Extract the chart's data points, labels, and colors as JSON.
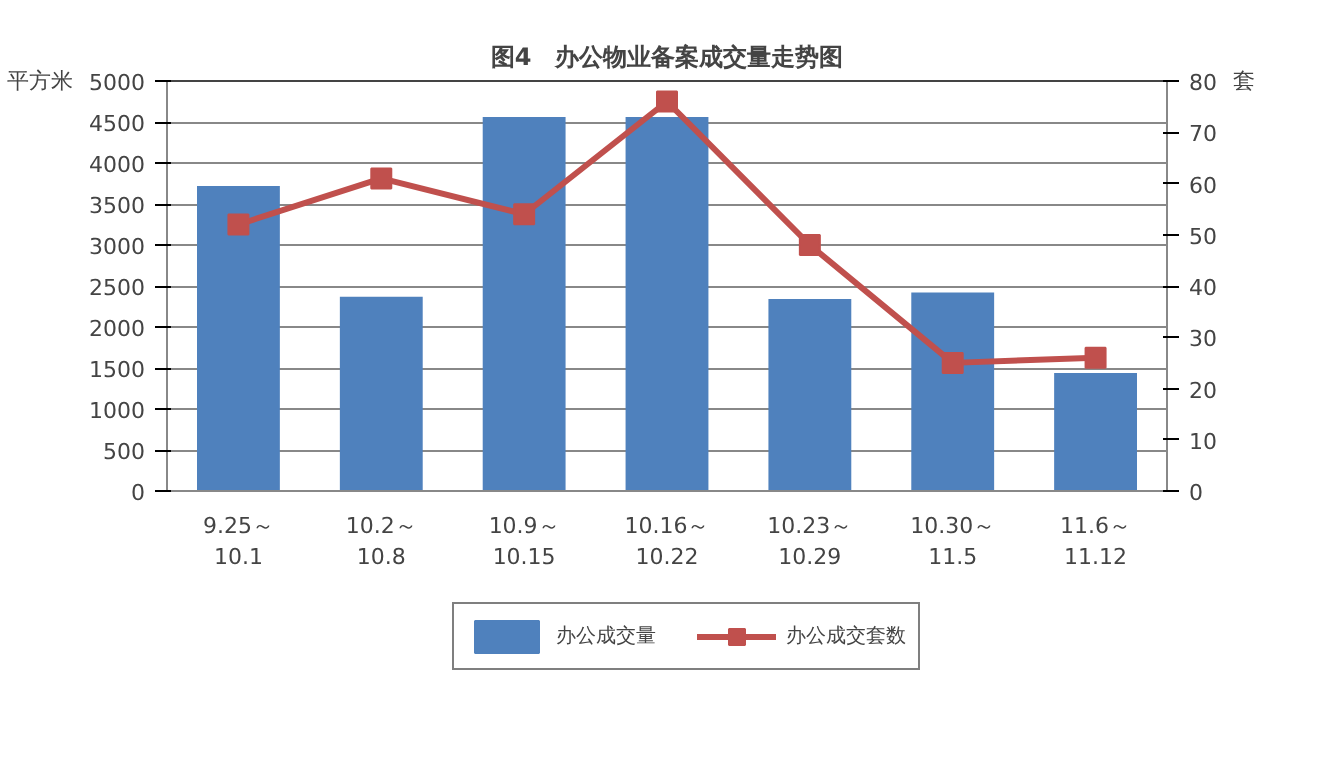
{
  "chart_data": {
    "type": "bar",
    "title": "图4　办公物业备案成交量走势图",
    "ylabel": "平方米",
    "y2label": "套",
    "categories": [
      "9.25～\n10.1",
      "10.2～\n10.8",
      "10.9～\n10.15",
      "10.16～\n10.22",
      "10.23～\n10.29",
      "10.30～\n11.5",
      "11.6～\n11.12"
    ],
    "series": [
      {
        "name": "办公成交量",
        "color": "#4f81bd",
        "values": [
          3720,
          2370,
          4560,
          4560,
          2340,
          2420,
          1440
        ]
      },
      {
        "name": "办公成交套数",
        "type": "line",
        "axis": "y2",
        "color": "#c0504d",
        "marker": "square",
        "values": [
          52,
          61,
          54,
          76,
          48,
          25,
          26
        ]
      }
    ],
    "ylim": [
      0,
      5000
    ],
    "yticks": [
      0,
      500,
      1000,
      1500,
      2000,
      2500,
      3000,
      3500,
      4000,
      4500,
      5000
    ],
    "y2lim": [
      0,
      80
    ],
    "y2ticks": [
      0,
      10,
      20,
      30,
      40,
      50,
      60,
      70,
      80
    ],
    "grid": "y",
    "legend": "bottom"
  }
}
